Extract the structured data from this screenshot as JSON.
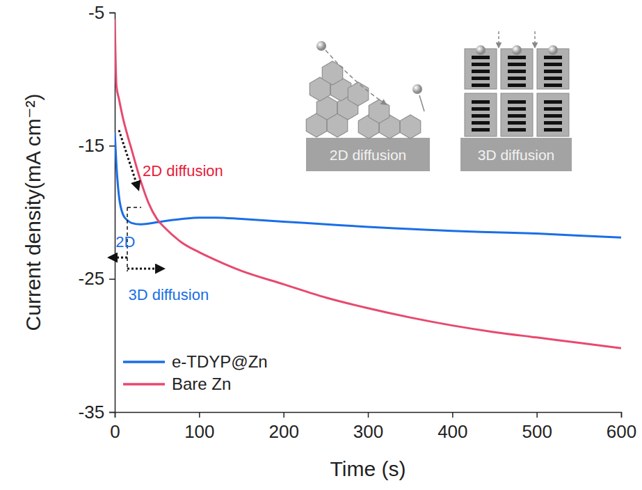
{
  "chart_data": {
    "type": "line",
    "x_label": "Time (s)",
    "y_label": "Current density(mA cm⁻²)",
    "x": [
      0,
      2,
      5,
      10,
      15,
      20,
      30,
      40,
      50,
      60,
      80,
      100,
      120,
      150,
      200,
      250,
      300,
      350,
      400,
      450,
      500,
      550,
      600
    ],
    "series": [
      {
        "name": "e-TDYP@Zn",
        "color": "#1a6ee6",
        "values": [
          -14,
          -16.5,
          -18.8,
          -20.2,
          -20.6,
          -20.8,
          -20.9,
          -20.85,
          -20.75,
          -20.65,
          -20.5,
          -20.4,
          -20.4,
          -20.5,
          -20.7,
          -20.9,
          -21.1,
          -21.25,
          -21.4,
          -21.5,
          -21.6,
          -21.75,
          -21.9
        ]
      },
      {
        "name": "Bare Zn",
        "color": "#e8496e",
        "values": [
          -5.5,
          -10.5,
          -11.5,
          -13.0,
          -14.2,
          -15.3,
          -17.5,
          -19.3,
          -20.5,
          -21.2,
          -22.3,
          -23.0,
          -23.6,
          -24.4,
          -25.4,
          -26.4,
          -27.2,
          -27.9,
          -28.5,
          -29.0,
          -29.4,
          -29.8,
          -30.2
        ]
      }
    ],
    "xlim": [
      0,
      600
    ],
    "xticks": [
      0,
      100,
      200,
      300,
      400,
      500,
      600
    ],
    "ylim": [
      -35,
      -5
    ],
    "yticks": [
      -35,
      -25,
      -15,
      -5
    ],
    "legend": "lower left",
    "annotations": [
      {
        "text": "2D diffusion",
        "x": 33,
        "y": -17.3,
        "color": "#e8203a"
      },
      {
        "text": "2D",
        "x": 1,
        "y": -22.6,
        "color": "#1a6ee6"
      },
      {
        "text": "3D diffusion",
        "x": 16,
        "y": -26.6,
        "color": "#1a6ee6"
      }
    ],
    "inset_labels": [
      "2D diffusion",
      "3D diffusion"
    ]
  }
}
